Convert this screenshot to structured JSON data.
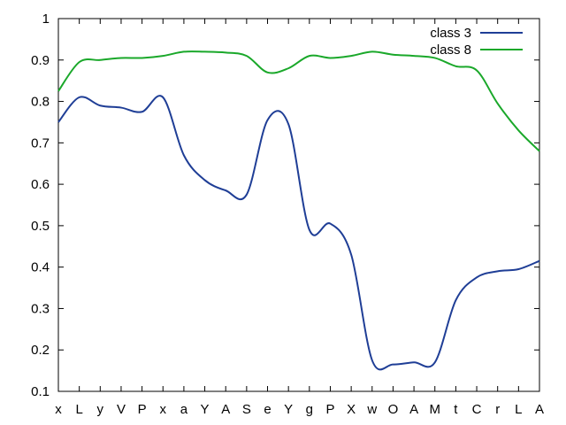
{
  "chart_data": {
    "type": "line",
    "title": "",
    "xlabel": "",
    "ylabel": "",
    "categories": [
      "x",
      "L",
      "y",
      "V",
      "P",
      "x",
      "a",
      "Y",
      "A",
      "S",
      "e",
      "Y",
      "g",
      "P",
      "X",
      "w",
      "O",
      "A",
      "M",
      "t",
      "C",
      "r",
      "L",
      "A"
    ],
    "ylim": [
      0.1,
      1.0
    ],
    "yticks": [
      0.1,
      0.2,
      0.3,
      0.4,
      0.5,
      0.6,
      0.7,
      0.8,
      0.9,
      1.0
    ],
    "ytick_labels": [
      "0.1",
      "0.2",
      "0.3",
      "0.4",
      "0.5",
      "0.6",
      "0.7",
      "0.8",
      "0.9",
      "1"
    ],
    "grid": false,
    "legend_position": "top-right",
    "series": [
      {
        "name": "class 3",
        "color": "#1f3e96",
        "values": [
          0.75,
          0.81,
          0.79,
          0.785,
          0.775,
          0.81,
          0.67,
          0.61,
          0.585,
          0.575,
          0.755,
          0.745,
          0.49,
          0.505,
          0.43,
          0.175,
          0.165,
          0.17,
          0.17,
          0.32,
          0.375,
          0.39,
          0.395,
          0.415
        ]
      },
      {
        "name": "class 8",
        "color": "#1aa82a",
        "values": [
          0.825,
          0.895,
          0.9,
          0.905,
          0.905,
          0.91,
          0.92,
          0.92,
          0.918,
          0.91,
          0.87,
          0.88,
          0.91,
          0.905,
          0.91,
          0.92,
          0.913,
          0.91,
          0.905,
          0.885,
          0.875,
          0.795,
          0.73,
          0.68
        ]
      }
    ]
  }
}
